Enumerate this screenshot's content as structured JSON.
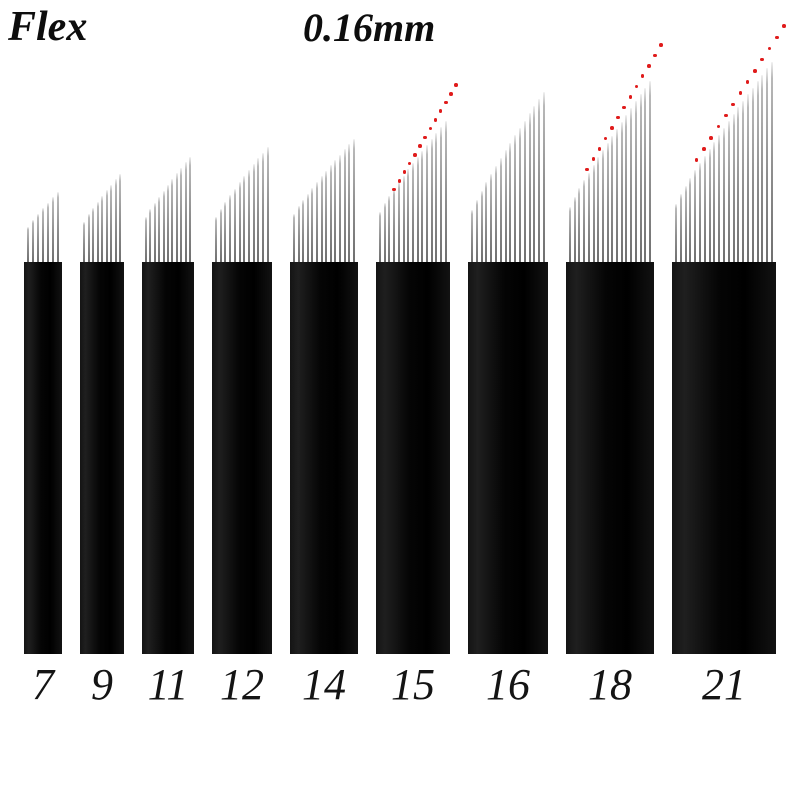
{
  "header": {
    "brand": "Flex",
    "size": "0.16mm"
  },
  "needles": {
    "handle_height": 392,
    "pin_color": "#9a9a9a",
    "handle_color": "#000000",
    "dot_color": "#e01b1b",
    "items": [
      {
        "label": "7",
        "pins": 7,
        "handle_width": 38,
        "pin_min": 35,
        "pin_max": 70,
        "red_dots": false
      },
      {
        "label": "9",
        "pins": 9,
        "handle_width": 44,
        "pin_min": 40,
        "pin_max": 88,
        "red_dots": false
      },
      {
        "label": "11",
        "pins": 11,
        "handle_width": 52,
        "pin_min": 45,
        "pin_max": 105,
        "red_dots": false
      },
      {
        "label": "12",
        "pins": 12,
        "handle_width": 60,
        "pin_min": 45,
        "pin_max": 115,
        "red_dots": false
      },
      {
        "label": "14",
        "pins": 14,
        "handle_width": 68,
        "pin_min": 48,
        "pin_max": 123,
        "red_dots": false
      },
      {
        "label": "15",
        "pins": 15,
        "handle_width": 74,
        "pin_min": 50,
        "pin_max": 141,
        "red_dots": true
      },
      {
        "label": "16",
        "pins": 16,
        "handle_width": 80,
        "pin_min": 52,
        "pin_max": 170,
        "red_dots": false
      },
      {
        "label": "18",
        "pins": 18,
        "handle_width": 88,
        "pin_min": 55,
        "pin_max": 181,
        "red_dots": true
      },
      {
        "label": "21",
        "pins": 21,
        "handle_width": 104,
        "pin_min": 58,
        "pin_max": 200,
        "red_dots": true
      }
    ]
  }
}
